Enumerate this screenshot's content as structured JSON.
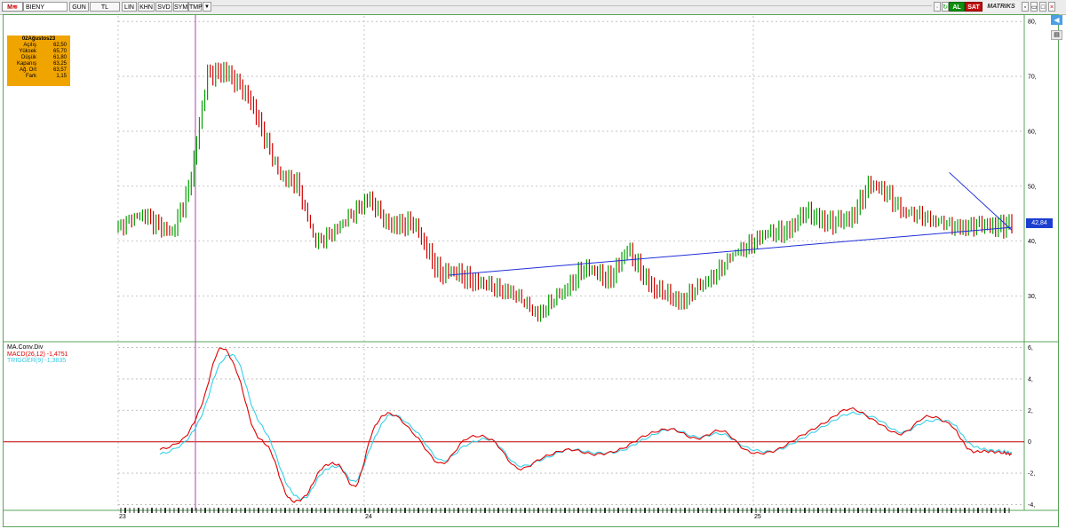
{
  "toolbar": {
    "logo": "M",
    "symbol": "BIENY",
    "buttons": [
      "GUN",
      "TL",
      "LIN",
      "KHN",
      "SVD",
      "SYM",
      "TMP"
    ],
    "al": "AL",
    "sat": "SAT",
    "brand": "MATRIKS"
  },
  "ohlc_box": {
    "date": "02Ağustos23",
    "rows": [
      {
        "label": "Açılış",
        "value": "62,50"
      },
      {
        "label": "Yüksek",
        "value": "65,70"
      },
      {
        "label": "Düşük",
        "value": "61,80"
      },
      {
        "label": "Kapanış",
        "value": "63,25"
      },
      {
        "label": "Ağ. Ort",
        "value": "63,57"
      },
      {
        "label": "Fark",
        "value": "1,15"
      }
    ]
  },
  "price_tag": "42,84",
  "colors": {
    "up": "#00a000",
    "down": "#d00000",
    "trendline": "#1f2fd8",
    "macd": "#e00000",
    "trigger": "#35d0e8",
    "zero_line": "#c00000",
    "cursor": "#b040b0",
    "price_tag_bg": "#1d3fd0",
    "ohlc_box_bg": "#f0a400"
  },
  "indicator": {
    "title": "MA.Conv.Div",
    "macd_label": "MACD(26,12)",
    "macd_value": "-1,4751",
    "trigger_label": "TRIGGER(9)",
    "trigger_value": "-1,3835"
  },
  "chart_data": [
    {
      "type": "candlestick",
      "title": "BIENY",
      "y_ticks": [
        "30,",
        "40,",
        "50,",
        "60,",
        "70,",
        "80,"
      ],
      "ylim": [
        22,
        81
      ],
      "x_ticks": [
        "23",
        "24",
        "25"
      ],
      "x": [
        0,
        0.03,
        0.06,
        0.08,
        0.1,
        0.12,
        0.15,
        0.18,
        0.2,
        0.22,
        0.25,
        0.28,
        0.3,
        0.33,
        0.36,
        0.38,
        0.41,
        0.44,
        0.47,
        0.5,
        0.52,
        0.55,
        0.57,
        0.6,
        0.63,
        0.66,
        0.69,
        0.72,
        0.75,
        0.77,
        0.8,
        0.82,
        0.84,
        0.86,
        0.88,
        0.9,
        0.93,
        0.95,
        0.97,
        0.99,
        1.0
      ],
      "close": [
        43,
        45,
        41,
        50,
        70,
        71,
        65,
        52,
        51,
        40,
        43,
        48,
        43,
        43,
        34,
        34,
        32,
        31,
        27,
        31,
        35,
        33,
        38,
        31,
        29,
        33,
        38,
        41,
        42,
        45,
        43,
        44,
        50,
        49,
        45,
        45,
        43,
        42.8,
        42.8,
        42.84,
        42.84
      ],
      "trendlines": [
        {
          "from": [
            0.37,
            33.8
          ],
          "to": [
            1.0,
            42.5
          ]
        },
        {
          "from": [
            0.93,
            52.5
          ],
          "to": [
            1.0,
            42
          ]
        }
      ],
      "cursor_date": "02Ağustos23"
    },
    {
      "type": "line",
      "title": "MA.Conv.Div",
      "y_ticks": [
        "-4,",
        "-2,",
        "0",
        "2,",
        "4,",
        "6,"
      ],
      "ylim": [
        -4.2,
        6.2
      ],
      "series": [
        {
          "name": "MACD(26,12)",
          "x": [
            0.0,
            0.03,
            0.05,
            0.07,
            0.09,
            0.11,
            0.13,
            0.15,
            0.17,
            0.19,
            0.21,
            0.23,
            0.25,
            0.27,
            0.3,
            0.33,
            0.36,
            0.39,
            0.42,
            0.45,
            0.48,
            0.51,
            0.54,
            0.57,
            0.6,
            0.63,
            0.66,
            0.69,
            0.72,
            0.75,
            0.78,
            0.81,
            0.84,
            0.87,
            0.9,
            0.93,
            0.95,
            0.97,
            0.99,
            1.0
          ],
          "values": [
            -0.5,
            0.3,
            2.5,
            5.9,
            4.5,
            0.8,
            -0.6,
            -3.5,
            -3.5,
            -1.7,
            -1.5,
            -2.8,
            0.7,
            1.8,
            0.4,
            -1.4,
            0.2,
            0.1,
            -1.7,
            -1.0,
            -0.5,
            -0.8,
            -0.5,
            0.4,
            0.8,
            0.2,
            0.7,
            -0.6,
            -0.6,
            0.3,
            1.2,
            2.1,
            1.3,
            0.5,
            1.6,
            1.0,
            -0.5,
            -0.6,
            -0.7,
            -0.8
          ]
        },
        {
          "name": "TRIGGER(9)",
          "x": [
            0.0,
            0.03,
            0.05,
            0.07,
            0.09,
            0.11,
            0.13,
            0.15,
            0.17,
            0.19,
            0.21,
            0.23,
            0.25,
            0.27,
            0.3,
            0.33,
            0.36,
            0.39,
            0.42,
            0.45,
            0.48,
            0.51,
            0.54,
            0.57,
            0.6,
            0.63,
            0.66,
            0.69,
            0.72,
            0.75,
            0.78,
            0.81,
            0.84,
            0.87,
            0.9,
            0.93,
            0.95,
            0.97,
            0.99,
            1.0
          ],
          "values": [
            -0.8,
            0.0,
            1.8,
            4.9,
            5.3,
            2.0,
            0.0,
            -2.8,
            -3.6,
            -2.0,
            -1.6,
            -2.5,
            0.0,
            1.7,
            0.7,
            -1.2,
            -0.2,
            0.1,
            -1.5,
            -1.1,
            -0.5,
            -0.7,
            -0.6,
            0.2,
            0.8,
            0.3,
            0.5,
            -0.4,
            -0.6,
            0.1,
            1.0,
            1.8,
            1.5,
            0.6,
            1.3,
            1.2,
            -0.1,
            -0.5,
            -0.6,
            -0.7
          ]
        }
      ]
    }
  ]
}
